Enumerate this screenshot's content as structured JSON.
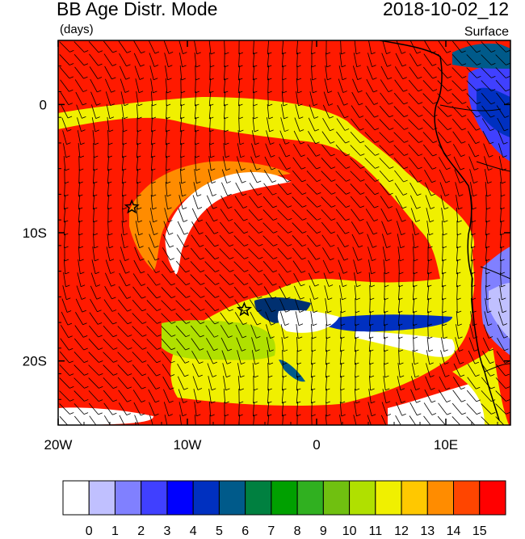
{
  "header": {
    "title": "BB Age Distr. Mode",
    "units": "(days)",
    "datetime": "2018-10-02_12",
    "level": "Surface"
  },
  "map": {
    "lon_range": [
      -20,
      15
    ],
    "lat_range": [
      -25,
      5
    ],
    "x_ticks": [
      {
        "value": -20,
        "label": "20W"
      },
      {
        "value": -10,
        "label": "10W"
      },
      {
        "value": 0,
        "label": "0"
      },
      {
        "value": 10,
        "label": "10E"
      }
    ],
    "y_ticks": [
      {
        "value": 0,
        "label": "0"
      },
      {
        "value": -10,
        "label": "10S"
      },
      {
        "value": -20,
        "label": "20S"
      }
    ],
    "markers": [
      {
        "lon": -14.3,
        "lat": -8.0
      },
      {
        "lon": -5.6,
        "lat": -16.0
      }
    ]
  },
  "colorbar": {
    "labels": [
      "0",
      "1",
      "2",
      "3",
      "4",
      "5",
      "6",
      "7",
      "8",
      "9",
      "10",
      "11",
      "12",
      "13",
      "14",
      "15"
    ],
    "colors": [
      "#ffffff",
      "#c0c0ff",
      "#8080ff",
      "#4040ff",
      "#0000ff",
      "#0030c0",
      "#005a8a",
      "#008040",
      "#00a000",
      "#30b020",
      "#70c010",
      "#b0e000",
      "#f0f000",
      "#ffc800",
      "#ff8c00",
      "#ff4500",
      "#ff0000"
    ]
  }
}
